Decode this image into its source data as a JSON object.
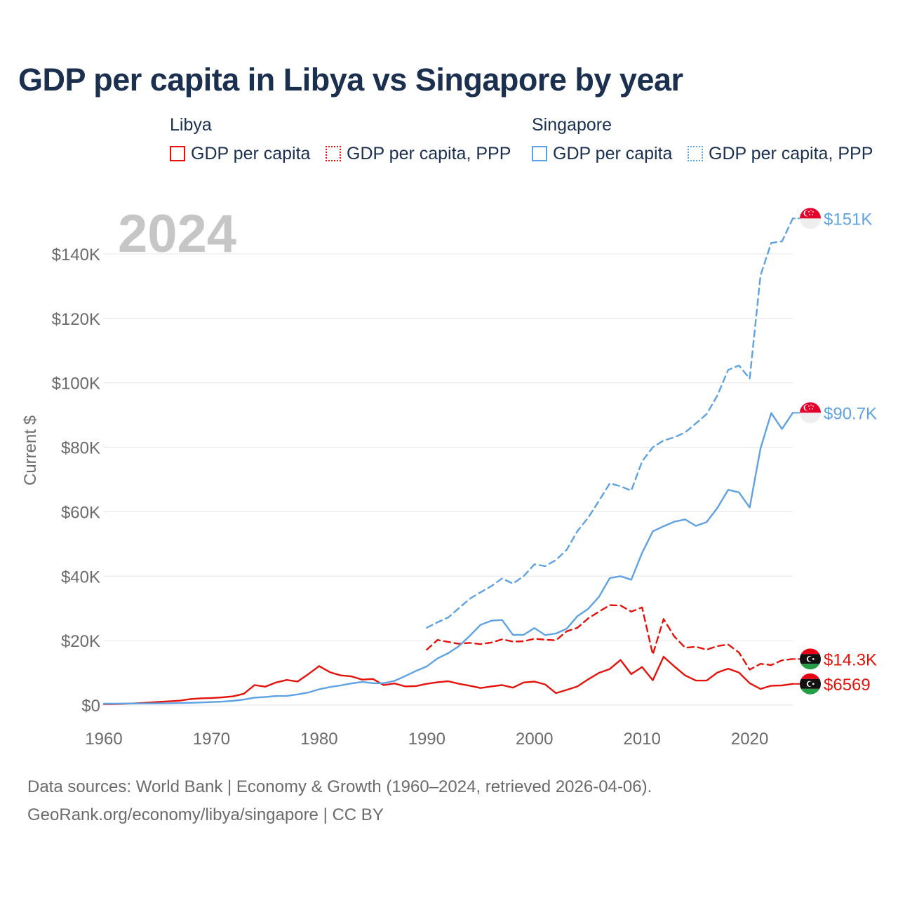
{
  "title": "GDP per capita in Libya vs Singapore by year",
  "legend": {
    "libya": {
      "label": "Libya",
      "items": [
        {
          "label": "GDP per capita",
          "style": "solid",
          "color": "#e3120b"
        },
        {
          "label": "GDP per capita, PPP",
          "style": "dotted",
          "color": "#e3120b"
        }
      ]
    },
    "singapore": {
      "label": "Singapore",
      "items": [
        {
          "label": "GDP per capita",
          "style": "solid",
          "color": "#5fa2e2"
        },
        {
          "label": "GDP per capita, PPP",
          "style": "dotted",
          "color": "#5fa2e2"
        }
      ]
    }
  },
  "year_label": "2024",
  "footer": {
    "line1": "Data sources: World Bank | Economy & Growth (1960–2024, retrieved 2026-04-06).",
    "line2": "GeoRank.org/economy/libya/singapore | CC BY"
  },
  "chart_data": {
    "type": "line",
    "title": "GDP per capita in Libya vs Singapore by year",
    "xlabel": "",
    "ylabel": "Current $",
    "xlim": [
      1960,
      2024
    ],
    "ylim": [
      0,
      150000
    ],
    "x_ticks": [
      1960,
      1970,
      1980,
      1990,
      2000,
      2010,
      2020
    ],
    "x_tick_labels": [
      "1960",
      "1970",
      "1980",
      "1990",
      "2000",
      "2010",
      "2020"
    ],
    "y_ticks": [
      0,
      20000,
      40000,
      60000,
      80000,
      100000,
      120000,
      140000
    ],
    "y_tick_labels": [
      "$0",
      "$20K",
      "$40K",
      "$60K",
      "$80K",
      "$100K",
      "$120K",
      "$140K"
    ],
    "grid": true,
    "series": [
      {
        "name": "Libya GDP per capita",
        "color": "#e3120b",
        "dash": "solid",
        "end_label": "$6569",
        "flag": "libya",
        "points": [
          [
            1960,
            300
          ],
          [
            1961,
            350
          ],
          [
            1962,
            420
          ],
          [
            1963,
            550
          ],
          [
            1964,
            750
          ],
          [
            1965,
            950
          ],
          [
            1966,
            1150
          ],
          [
            1967,
            1350
          ],
          [
            1968,
            1850
          ],
          [
            1969,
            2100
          ],
          [
            1970,
            2200
          ],
          [
            1971,
            2400
          ],
          [
            1972,
            2700
          ],
          [
            1973,
            3500
          ],
          [
            1974,
            6200
          ],
          [
            1975,
            5700
          ],
          [
            1976,
            7000
          ],
          [
            1977,
            7800
          ],
          [
            1978,
            7300
          ],
          [
            1979,
            9600
          ],
          [
            1980,
            12100
          ],
          [
            1981,
            10200
          ],
          [
            1982,
            9200
          ],
          [
            1983,
            8900
          ],
          [
            1984,
            7900
          ],
          [
            1985,
            8100
          ],
          [
            1986,
            6200
          ],
          [
            1987,
            6700
          ],
          [
            1988,
            5800
          ],
          [
            1989,
            5900
          ],
          [
            1990,
            6600
          ],
          [
            1991,
            7100
          ],
          [
            1992,
            7400
          ],
          [
            1993,
            6600
          ],
          [
            1994,
            6000
          ],
          [
            1995,
            5300
          ],
          [
            1996,
            5800
          ],
          [
            1997,
            6200
          ],
          [
            1998,
            5400
          ],
          [
            1999,
            7000
          ],
          [
            2000,
            7300
          ],
          [
            2001,
            6400
          ],
          [
            2002,
            3700
          ],
          [
            2003,
            4700
          ],
          [
            2004,
            5800
          ],
          [
            2005,
            8000
          ],
          [
            2006,
            10000
          ],
          [
            2007,
            11200
          ],
          [
            2008,
            14000
          ],
          [
            2009,
            9600
          ],
          [
            2010,
            11800
          ],
          [
            2011,
            7700
          ],
          [
            2012,
            15000
          ],
          [
            2013,
            12000
          ],
          [
            2014,
            9200
          ],
          [
            2015,
            7600
          ],
          [
            2016,
            7600
          ],
          [
            2017,
            10100
          ],
          [
            2018,
            11300
          ],
          [
            2019,
            10100
          ],
          [
            2020,
            6800
          ],
          [
            2021,
            5000
          ],
          [
            2022,
            6000
          ],
          [
            2023,
            6100
          ],
          [
            2024,
            6569
          ]
        ]
      },
      {
        "name": "Libya GDP per capita, PPP",
        "color": "#e3120b",
        "dash": "dashed",
        "end_label": "$14.3K",
        "flag": "libya",
        "points": [
          [
            1990,
            17200
          ],
          [
            1991,
            20200
          ],
          [
            1992,
            19600
          ],
          [
            1993,
            19000
          ],
          [
            1994,
            19300
          ],
          [
            1995,
            18900
          ],
          [
            1996,
            19400
          ],
          [
            1997,
            20400
          ],
          [
            1998,
            19700
          ],
          [
            1999,
            19800
          ],
          [
            2000,
            20600
          ],
          [
            2001,
            20300
          ],
          [
            2002,
            20100
          ],
          [
            2003,
            22900
          ],
          [
            2004,
            24000
          ],
          [
            2005,
            26900
          ],
          [
            2006,
            29000
          ],
          [
            2007,
            31000
          ],
          [
            2008,
            30900
          ],
          [
            2009,
            29000
          ],
          [
            2010,
            30300
          ],
          [
            2011,
            15700
          ],
          [
            2012,
            26700
          ],
          [
            2013,
            21300
          ],
          [
            2014,
            17800
          ],
          [
            2015,
            18100
          ],
          [
            2016,
            17200
          ],
          [
            2017,
            18300
          ],
          [
            2018,
            18800
          ],
          [
            2019,
            16300
          ],
          [
            2020,
            11000
          ],
          [
            2021,
            12800
          ],
          [
            2022,
            12400
          ],
          [
            2023,
            13900
          ],
          [
            2024,
            14300
          ]
        ]
      },
      {
        "name": "Singapore GDP per capita",
        "color": "#5fa2e2",
        "dash": "solid",
        "end_label": "$90.7K",
        "flag": "singapore",
        "points": [
          [
            1960,
            430
          ],
          [
            1961,
            450
          ],
          [
            1962,
            470
          ],
          [
            1963,
            510
          ],
          [
            1964,
            490
          ],
          [
            1965,
            520
          ],
          [
            1966,
            560
          ],
          [
            1967,
            630
          ],
          [
            1968,
            700
          ],
          [
            1969,
            810
          ],
          [
            1970,
            930
          ],
          [
            1971,
            1070
          ],
          [
            1972,
            1300
          ],
          [
            1973,
            1700
          ],
          [
            1974,
            2300
          ],
          [
            1975,
            2500
          ],
          [
            1976,
            2800
          ],
          [
            1977,
            2850
          ],
          [
            1978,
            3300
          ],
          [
            1979,
            3900
          ],
          [
            1980,
            4900
          ],
          [
            1981,
            5600
          ],
          [
            1982,
            6100
          ],
          [
            1983,
            6700
          ],
          [
            1984,
            7200
          ],
          [
            1985,
            6800
          ],
          [
            1986,
            6800
          ],
          [
            1987,
            7500
          ],
          [
            1988,
            9000
          ],
          [
            1989,
            10600
          ],
          [
            1990,
            12000
          ],
          [
            1991,
            14500
          ],
          [
            1992,
            16100
          ],
          [
            1993,
            18300
          ],
          [
            1994,
            21500
          ],
          [
            1995,
            24900
          ],
          [
            1996,
            26200
          ],
          [
            1997,
            26400
          ],
          [
            1998,
            21800
          ],
          [
            1999,
            21800
          ],
          [
            2000,
            23900
          ],
          [
            2001,
            21700
          ],
          [
            2002,
            22200
          ],
          [
            2003,
            23700
          ],
          [
            2004,
            27600
          ],
          [
            2005,
            29900
          ],
          [
            2006,
            33600
          ],
          [
            2007,
            39400
          ],
          [
            2008,
            40000
          ],
          [
            2009,
            38900
          ],
          [
            2010,
            47200
          ],
          [
            2011,
            53900
          ],
          [
            2012,
            55500
          ],
          [
            2013,
            56900
          ],
          [
            2014,
            57600
          ],
          [
            2015,
            55600
          ],
          [
            2016,
            56800
          ],
          [
            2017,
            61200
          ],
          [
            2018,
            66800
          ],
          [
            2019,
            66000
          ],
          [
            2020,
            61300
          ],
          [
            2021,
            79600
          ],
          [
            2022,
            90600
          ],
          [
            2023,
            85700
          ],
          [
            2024,
            90700
          ]
        ]
      },
      {
        "name": "Singapore GDP per capita, PPP",
        "color": "#5fa2e2",
        "dash": "dashed",
        "end_label": "$151K",
        "flag": "singapore",
        "points": [
          [
            1990,
            24000
          ],
          [
            1991,
            25700
          ],
          [
            1992,
            27200
          ],
          [
            1993,
            30100
          ],
          [
            1994,
            33000
          ],
          [
            1995,
            35000
          ],
          [
            1996,
            36900
          ],
          [
            1997,
            39300
          ],
          [
            1998,
            37700
          ],
          [
            1999,
            40000
          ],
          [
            2000,
            43700
          ],
          [
            2001,
            43100
          ],
          [
            2002,
            45000
          ],
          [
            2003,
            48200
          ],
          [
            2004,
            54000
          ],
          [
            2005,
            58200
          ],
          [
            2006,
            63400
          ],
          [
            2007,
            68800
          ],
          [
            2008,
            67900
          ],
          [
            2009,
            66500
          ],
          [
            2010,
            75600
          ],
          [
            2011,
            80000
          ],
          [
            2012,
            82100
          ],
          [
            2013,
            83100
          ],
          [
            2014,
            84600
          ],
          [
            2015,
            87400
          ],
          [
            2016,
            90300
          ],
          [
            2017,
            96100
          ],
          [
            2018,
            104000
          ],
          [
            2019,
            105400
          ],
          [
            2020,
            101300
          ],
          [
            2021,
            133300
          ],
          [
            2022,
            143400
          ],
          [
            2023,
            143900
          ],
          [
            2024,
            151000
          ]
        ]
      }
    ]
  }
}
